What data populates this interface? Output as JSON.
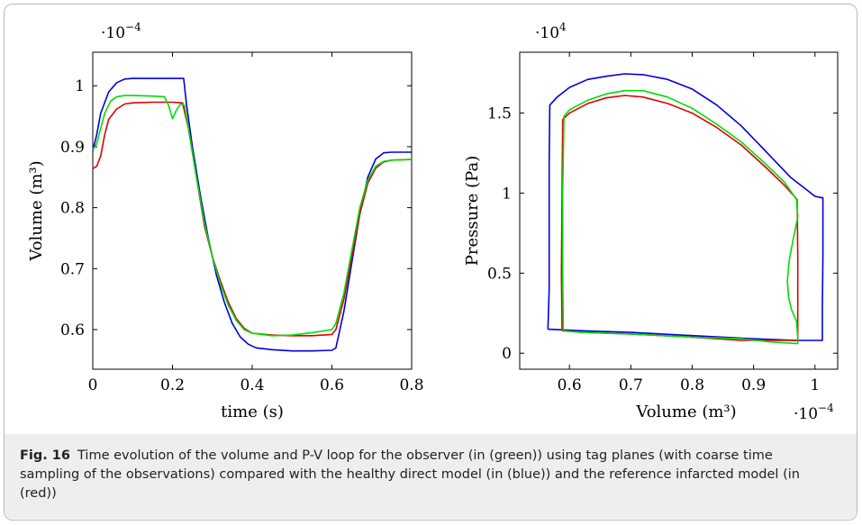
{
  "caption": {
    "label": "Fig. 16",
    "text": "Time evolution of the volume and P-V loop for the observer (in (green)) using tag planes (with coarse time sampling of the observations) compared with the healthy direct model (in (blue)) and the reference infarcted model (in (red))"
  },
  "colors": {
    "healthy": "#0000dd",
    "infarcted": "#dd0000",
    "observer": "#00dd00"
  },
  "chart_data": [
    {
      "type": "line",
      "xlabel": "time (s)",
      "ylabel": "Volume (m³)",
      "multiplier": {
        "base": "·10",
        "exp": "−4"
      },
      "xlim": [
        0,
        0.8
      ],
      "ylim": [
        0.535,
        1.055
      ],
      "xticks": [
        "0",
        "0.2",
        "0.4",
        "0.6",
        "0.8"
      ],
      "xtick_values": [
        0,
        0.2,
        0.4,
        0.6,
        0.8
      ],
      "yticks": [
        "0.6",
        "0.7",
        "0.8",
        "0.9",
        "1"
      ],
      "ytick_values": [
        0.6,
        0.7,
        0.8,
        0.9,
        1.0
      ],
      "series": [
        {
          "color_key": "healthy",
          "points": [
            [
              0,
              0.893
            ],
            [
              0.01,
              0.92
            ],
            [
              0.02,
              0.955
            ],
            [
              0.04,
              0.99
            ],
            [
              0.06,
              1.005
            ],
            [
              0.08,
              1.011
            ],
            [
              0.1,
              1.012
            ],
            [
              0.15,
              1.012
            ],
            [
              0.2,
              1.012
            ],
            [
              0.228,
              1.012
            ],
            [
              0.235,
              0.97
            ],
            [
              0.25,
              0.9
            ],
            [
              0.27,
              0.82
            ],
            [
              0.29,
              0.75
            ],
            [
              0.31,
              0.69
            ],
            [
              0.33,
              0.645
            ],
            [
              0.35,
              0.61
            ],
            [
              0.37,
              0.588
            ],
            [
              0.39,
              0.576
            ],
            [
              0.41,
              0.57
            ],
            [
              0.45,
              0.567
            ],
            [
              0.5,
              0.565
            ],
            [
              0.55,
              0.565
            ],
            [
              0.6,
              0.566
            ],
            [
              0.61,
              0.57
            ],
            [
              0.63,
              0.63
            ],
            [
              0.65,
              0.71
            ],
            [
              0.67,
              0.79
            ],
            [
              0.69,
              0.85
            ],
            [
              0.71,
              0.88
            ],
            [
              0.73,
              0.89
            ],
            [
              0.75,
              0.891
            ],
            [
              0.8,
              0.891
            ]
          ]
        },
        {
          "color_key": "infarcted",
          "points": [
            [
              0,
              0.864
            ],
            [
              0.01,
              0.868
            ],
            [
              0.02,
              0.885
            ],
            [
              0.03,
              0.92
            ],
            [
              0.04,
              0.945
            ],
            [
              0.06,
              0.962
            ],
            [
              0.08,
              0.97
            ],
            [
              0.1,
              0.972
            ],
            [
              0.15,
              0.973
            ],
            [
              0.2,
              0.973
            ],
            [
              0.225,
              0.972
            ],
            [
              0.24,
              0.93
            ],
            [
              0.26,
              0.85
            ],
            [
              0.28,
              0.77
            ],
            [
              0.3,
              0.72
            ],
            [
              0.32,
              0.68
            ],
            [
              0.34,
              0.645
            ],
            [
              0.36,
              0.618
            ],
            [
              0.38,
              0.602
            ],
            [
              0.4,
              0.594
            ],
            [
              0.45,
              0.591
            ],
            [
              0.5,
              0.59
            ],
            [
              0.55,
              0.59
            ],
            [
              0.6,
              0.592
            ],
            [
              0.61,
              0.6
            ],
            [
              0.63,
              0.65
            ],
            [
              0.65,
              0.72
            ],
            [
              0.67,
              0.79
            ],
            [
              0.69,
              0.84
            ],
            [
              0.71,
              0.865
            ],
            [
              0.73,
              0.875
            ],
            [
              0.75,
              0.878
            ],
            [
              0.8,
              0.879
            ]
          ]
        },
        {
          "color_key": "observer",
          "points": [
            [
              0,
              0.895
            ],
            [
              0.01,
              0.905
            ],
            [
              0.02,
              0.93
            ],
            [
              0.03,
              0.955
            ],
            [
              0.045,
              0.975
            ],
            [
              0.06,
              0.982
            ],
            [
              0.08,
              0.984
            ],
            [
              0.1,
              0.984
            ],
            [
              0.15,
              0.983
            ],
            [
              0.18,
              0.982
            ],
            [
              0.19,
              0.968
            ],
            [
              0.2,
              0.946
            ],
            [
              0.21,
              0.96
            ],
            [
              0.22,
              0.97
            ],
            [
              0.23,
              0.968
            ],
            [
              0.24,
              0.93
            ],
            [
              0.26,
              0.85
            ],
            [
              0.28,
              0.775
            ],
            [
              0.3,
              0.72
            ],
            [
              0.32,
              0.675
            ],
            [
              0.34,
              0.64
            ],
            [
              0.36,
              0.615
            ],
            [
              0.38,
              0.6
            ],
            [
              0.4,
              0.594
            ],
            [
              0.45,
              0.59
            ],
            [
              0.5,
              0.591
            ],
            [
              0.55,
              0.595
            ],
            [
              0.6,
              0.6
            ],
            [
              0.61,
              0.61
            ],
            [
              0.63,
              0.66
            ],
            [
              0.65,
              0.73
            ],
            [
              0.67,
              0.8
            ],
            [
              0.69,
              0.845
            ],
            [
              0.71,
              0.868
            ],
            [
              0.73,
              0.876
            ],
            [
              0.75,
              0.878
            ],
            [
              0.8,
              0.879
            ]
          ]
        }
      ]
    },
    {
      "type": "line",
      "xlabel": "Volume (m³)",
      "ylabel": "Pressure (Pa)",
      "x_multiplier": {
        "base": "·10",
        "exp": "−4"
      },
      "y_multiplier": {
        "base": "·10",
        "exp": "4"
      },
      "xlim": [
        0.519,
        1.037
      ],
      "ylim": [
        -0.1,
        1.88
      ],
      "xticks": [
        "0.6",
        "0.7",
        "0.8",
        "0.9",
        "1"
      ],
      "xtick_values": [
        0.6,
        0.7,
        0.8,
        0.9,
        1.0
      ],
      "yticks": [
        "0",
        "0.5",
        "1",
        "1.5"
      ],
      "ytick_values": [
        0,
        0.5,
        1.0,
        1.5
      ],
      "series": [
        {
          "color_key": "healthy",
          "points": [
            [
              0.565,
              0.15
            ],
            [
              0.567,
              0.4
            ],
            [
              0.567,
              0.8
            ],
            [
              0.567,
              1.2
            ],
            [
              0.568,
              1.55
            ],
            [
              0.58,
              1.6
            ],
            [
              0.6,
              1.66
            ],
            [
              0.63,
              1.71
            ],
            [
              0.66,
              1.73
            ],
            [
              0.69,
              1.745
            ],
            [
              0.72,
              1.74
            ],
            [
              0.76,
              1.71
            ],
            [
              0.8,
              1.65
            ],
            [
              0.84,
              1.55
            ],
            [
              0.88,
              1.42
            ],
            [
              0.92,
              1.26
            ],
            [
              0.96,
              1.1
            ],
            [
              1.0,
              0.98
            ],
            [
              1.013,
              0.97
            ],
            [
              1.013,
              0.6
            ],
            [
              1.012,
              0.3
            ],
            [
              1.012,
              0.08
            ],
            [
              0.97,
              0.08
            ],
            [
              0.9,
              0.09
            ],
            [
              0.85,
              0.1
            ],
            [
              0.8,
              0.11
            ],
            [
              0.7,
              0.13
            ],
            [
              0.62,
              0.14
            ],
            [
              0.565,
              0.15
            ]
          ]
        },
        {
          "color_key": "infarcted",
          "points": [
            [
              0.588,
              0.14
            ],
            [
              0.587,
              0.5
            ],
            [
              0.588,
              1.0
            ],
            [
              0.589,
              1.46
            ],
            [
              0.6,
              1.5
            ],
            [
              0.63,
              1.56
            ],
            [
              0.66,
              1.595
            ],
            [
              0.69,
              1.61
            ],
            [
              0.72,
              1.6
            ],
            [
              0.76,
              1.56
            ],
            [
              0.8,
              1.5
            ],
            [
              0.84,
              1.41
            ],
            [
              0.88,
              1.3
            ],
            [
              0.92,
              1.16
            ],
            [
              0.95,
              1.05
            ],
            [
              0.971,
              0.96
            ],
            [
              0.972,
              0.6
            ],
            [
              0.972,
              0.3
            ],
            [
              0.972,
              0.08
            ],
            [
              0.93,
              0.08
            ],
            [
              0.88,
              0.08
            ],
            [
              0.8,
              0.1
            ],
            [
              0.7,
              0.12
            ],
            [
              0.62,
              0.13
            ],
            [
              0.588,
              0.14
            ]
          ]
        },
        {
          "color_key": "observer",
          "points": [
            [
              0.59,
              0.14
            ],
            [
              0.589,
              0.5
            ],
            [
              0.589,
              1.0
            ],
            [
              0.591,
              1.48
            ],
            [
              0.6,
              1.52
            ],
            [
              0.63,
              1.58
            ],
            [
              0.66,
              1.62
            ],
            [
              0.69,
              1.64
            ],
            [
              0.72,
              1.64
            ],
            [
              0.76,
              1.6
            ],
            [
              0.8,
              1.53
            ],
            [
              0.84,
              1.43
            ],
            [
              0.88,
              1.32
            ],
            [
              0.92,
              1.18
            ],
            [
              0.95,
              1.07
            ],
            [
              0.97,
              0.96
            ],
            [
              0.972,
              0.85
            ],
            [
              0.965,
              0.72
            ],
            [
              0.958,
              0.58
            ],
            [
              0.955,
              0.45
            ],
            [
              0.957,
              0.35
            ],
            [
              0.962,
              0.27
            ],
            [
              0.97,
              0.2
            ],
            [
              0.972,
              0.1
            ],
            [
              0.972,
              0.06
            ],
            [
              0.93,
              0.07
            ],
            [
              0.88,
              0.09
            ],
            [
              0.8,
              0.1
            ],
            [
              0.7,
              0.12
            ],
            [
              0.62,
              0.13
            ],
            [
              0.59,
              0.14
            ]
          ]
        }
      ]
    }
  ]
}
